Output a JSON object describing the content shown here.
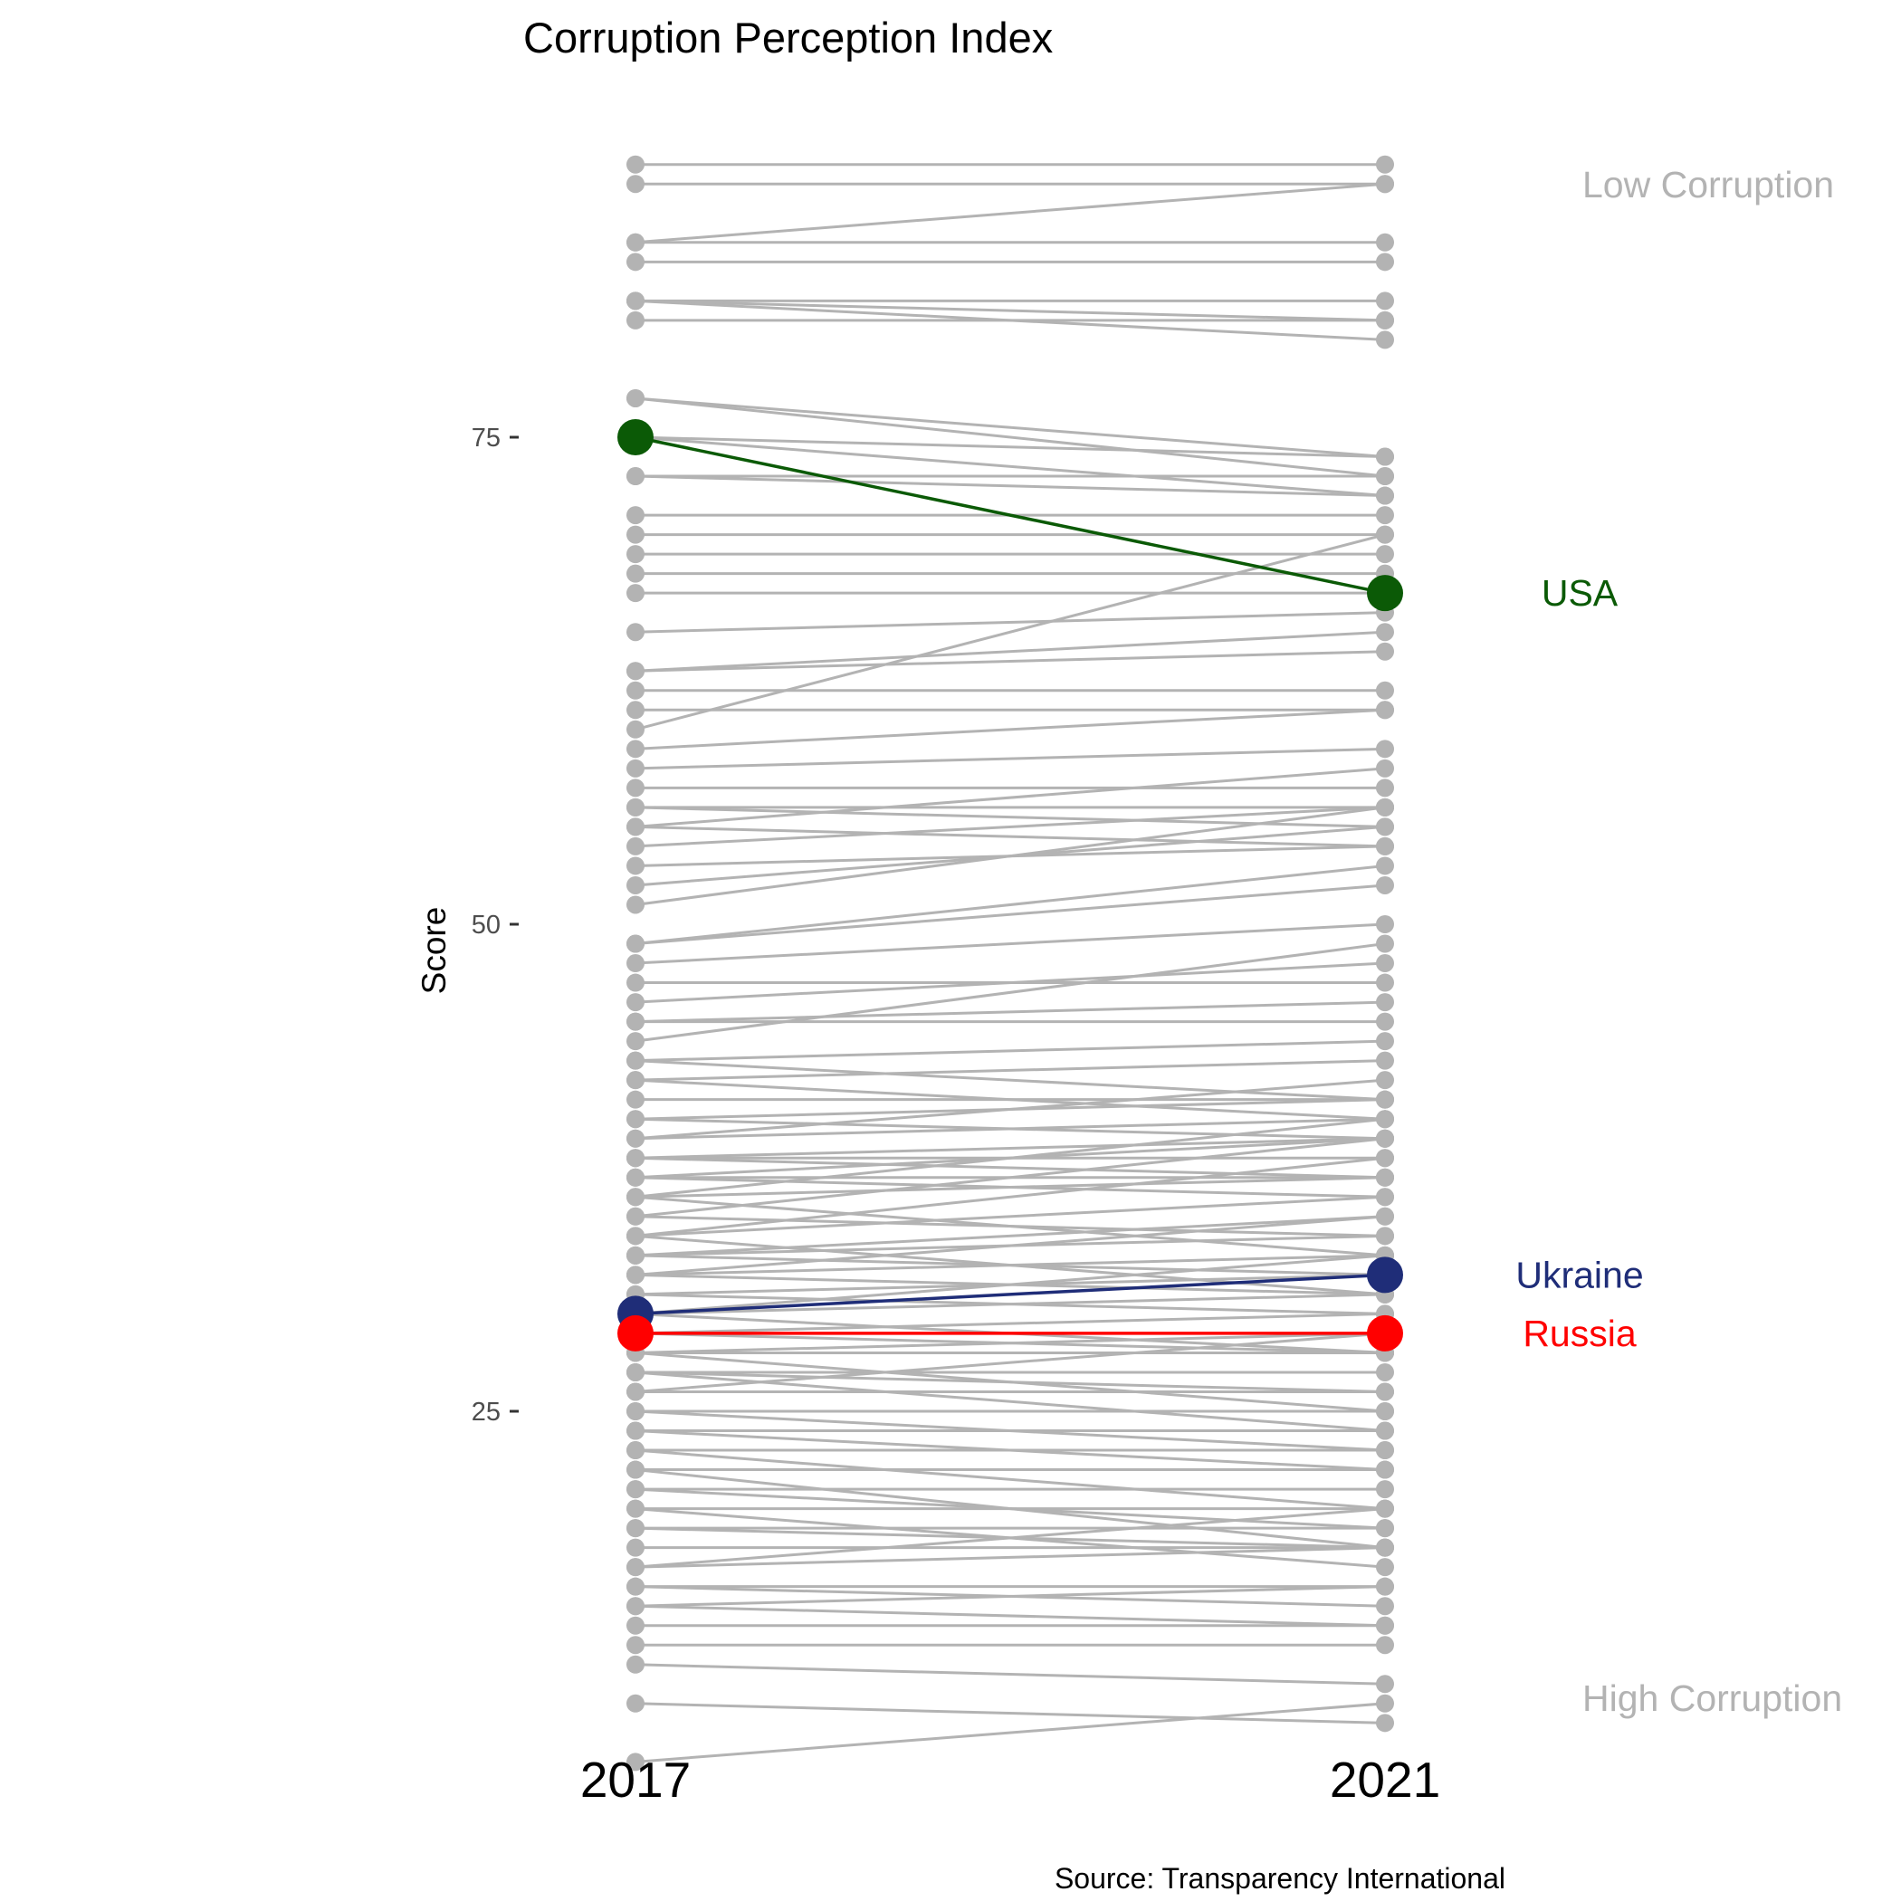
{
  "chart_data": {
    "type": "line",
    "chart_kind": "slopegraph",
    "title": "Corruption Perception Index",
    "ylabel": "Score",
    "caption": "Source: Transparency International",
    "x_categories": [
      "2017",
      "2021"
    ],
    "ylim": [
      3,
      92
    ],
    "y_ticks": [
      25,
      50,
      75
    ],
    "y_tick_labels": [
      "25",
      "50",
      "75"
    ],
    "grid": false,
    "annotations": {
      "top": "Low Corruption",
      "bottom": "High Corruption",
      "color": "#b3b3b3"
    },
    "background_series_color": "#b3b3b3",
    "highlight_series": [
      {
        "name": "USA",
        "values": [
          75,
          67
        ],
        "color": "#0b5a06"
      },
      {
        "name": "Ukraine",
        "values": [
          30,
          32
        ],
        "color": "#1f2d78"
      },
      {
        "name": "Russia",
        "values": [
          29,
          29
        ],
        "color": "#ff0000"
      }
    ],
    "background_series": [
      [
        89,
        89
      ],
      [
        88,
        88
      ],
      [
        85,
        88
      ],
      [
        85,
        85
      ],
      [
        84,
        84
      ],
      [
        82,
        82
      ],
      [
        82,
        81
      ],
      [
        82,
        80
      ],
      [
        81,
        81
      ],
      [
        77,
        73
      ],
      [
        77,
        74
      ],
      [
        75,
        72
      ],
      [
        75,
        74
      ],
      [
        73,
        73
      ],
      [
        73,
        72
      ],
      [
        71,
        71
      ],
      [
        70,
        70
      ],
      [
        69,
        69
      ],
      [
        68,
        68
      ],
      [
        67,
        67
      ],
      [
        65,
        66
      ],
      [
        63,
        65
      ],
      [
        63,
        64
      ],
      [
        62,
        62
      ],
      [
        61,
        61
      ],
      [
        60,
        70
      ],
      [
        59,
        61
      ],
      [
        58,
        59
      ],
      [
        57,
        57
      ],
      [
        56,
        56
      ],
      [
        56,
        55
      ],
      [
        55,
        58
      ],
      [
        55,
        54
      ],
      [
        54,
        56
      ],
      [
        53,
        54
      ],
      [
        52,
        55
      ],
      [
        51,
        56
      ],
      [
        49,
        53
      ],
      [
        49,
        52
      ],
      [
        48,
        50
      ],
      [
        47,
        47
      ],
      [
        46,
        48
      ],
      [
        45,
        45
      ],
      [
        45,
        46
      ],
      [
        44,
        49
      ],
      [
        43,
        41
      ],
      [
        43,
        44
      ],
      [
        42,
        43
      ],
      [
        42,
        40
      ],
      [
        41,
        41
      ],
      [
        40,
        41
      ],
      [
        40,
        39
      ],
      [
        39,
        42
      ],
      [
        39,
        40
      ],
      [
        38,
        38
      ],
      [
        38,
        39
      ],
      [
        38,
        37
      ],
      [
        37,
        39
      ],
      [
        37,
        36
      ],
      [
        37,
        37
      ],
      [
        36,
        40
      ],
      [
        36,
        33
      ],
      [
        36,
        37
      ],
      [
        35,
        39
      ],
      [
        35,
        34
      ],
      [
        34,
        36
      ],
      [
        34,
        31
      ],
      [
        34,
        38
      ],
      [
        33,
        35
      ],
      [
        33,
        32
      ],
      [
        33,
        34
      ],
      [
        32,
        35
      ],
      [
        32,
        31
      ],
      [
        32,
        33
      ],
      [
        31,
        32
      ],
      [
        31,
        30
      ],
      [
        30,
        33
      ],
      [
        30,
        28
      ],
      [
        30,
        31
      ],
      [
        29,
        28
      ],
      [
        29,
        30
      ],
      [
        28,
        28
      ],
      [
        28,
        25
      ],
      [
        28,
        29
      ],
      [
        27,
        27
      ],
      [
        27,
        26
      ],
      [
        27,
        24
      ],
      [
        26,
        26
      ],
      [
        26,
        29
      ],
      [
        25,
        23
      ],
      [
        25,
        25
      ],
      [
        24,
        24
      ],
      [
        24,
        22
      ],
      [
        23,
        23
      ],
      [
        23,
        20
      ],
      [
        22,
        22
      ],
      [
        22,
        18
      ],
      [
        21,
        21
      ],
      [
        21,
        19
      ],
      [
        20,
        20
      ],
      [
        20,
        17
      ],
      [
        19,
        19
      ],
      [
        19,
        18
      ],
      [
        18,
        18
      ],
      [
        17,
        18
      ],
      [
        17,
        20
      ],
      [
        16,
        16
      ],
      [
        16,
        15
      ],
      [
        15,
        14
      ],
      [
        15,
        16
      ],
      [
        14,
        14
      ],
      [
        13,
        13
      ],
      [
        12,
        11
      ],
      [
        10,
        9
      ],
      [
        7,
        10
      ]
    ]
  }
}
